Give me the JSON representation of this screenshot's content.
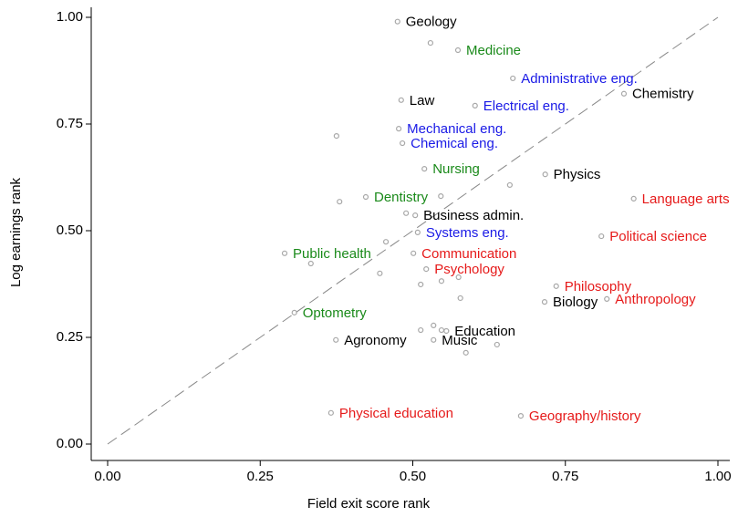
{
  "chart_data": {
    "type": "scatter",
    "xlabel": "Field exit score rank",
    "ylabel": "Log earnings rank",
    "xlim": [
      0,
      1
    ],
    "ylim": [
      0,
      1
    ],
    "xticks": [
      {
        "value": 0,
        "label": "0.00"
      },
      {
        "value": 0.25,
        "label": "0.25"
      },
      {
        "value": 0.5,
        "label": "0.50"
      },
      {
        "value": 0.75,
        "label": "0.75"
      },
      {
        "value": 1,
        "label": "1.00"
      }
    ],
    "yticks": [
      {
        "value": 0,
        "label": "0.00"
      },
      {
        "value": 0.25,
        "label": "0.25"
      },
      {
        "value": 0.5,
        "label": "0.50"
      },
      {
        "value": 0.75,
        "label": "0.75"
      },
      {
        "value": 1,
        "label": "1.00"
      }
    ],
    "marker_color": "#a8a8a8",
    "reference_line_color": "#888888",
    "x": [
      0.475,
      0.574,
      0.664,
      0.481,
      0.602,
      0.846,
      0.477,
      0.483,
      0.519,
      0.717,
      0.423,
      0.862,
      0.504,
      0.508,
      0.809,
      0.29,
      0.501,
      0.522,
      0.735,
      0.818,
      0.716,
      0.306,
      0.555,
      0.374,
      0.534,
      0.366,
      0.677,
      0.529,
      0.375,
      0.38,
      0.546,
      0.659,
      0.489,
      0.456,
      0.333,
      0.446,
      0.513,
      0.547,
      0.575,
      0.578,
      0.534,
      0.513,
      0.547,
      0.638,
      0.587
    ],
    "y": [
      0.99,
      0.923,
      0.857,
      0.806,
      0.793,
      0.821,
      0.739,
      0.705,
      0.645,
      0.632,
      0.579,
      0.575,
      0.536,
      0.496,
      0.487,
      0.447,
      0.447,
      0.41,
      0.37,
      0.34,
      0.333,
      0.308,
      0.265,
      0.244,
      0.244,
      0.073,
      0.066,
      0.94,
      0.722,
      0.568,
      0.581,
      0.607,
      0.541,
      0.474,
      0.423,
      0.4,
      0.374,
      0.382,
      0.391,
      0.342,
      0.278,
      0.267,
      0.267,
      0.233,
      0.214
    ],
    "labels": [
      "Geology",
      "Medicine",
      "Administrative eng.",
      "Law",
      "Electrical eng.",
      "Chemistry",
      "Mechanical eng.",
      "Chemical eng.",
      "Nursing",
      "Physics",
      "Dentistry",
      "Language arts",
      "Business admin.",
      "Systems eng.",
      "Political science",
      "Public health",
      "Communication",
      "Psychology",
      "Philosophy",
      "Anthropology",
      "Biology",
      "Optometry",
      "Education",
      "Agronomy",
      "Music",
      "Physical education",
      "Geography/history",
      null,
      null,
      null,
      null,
      null,
      null,
      null,
      null,
      null,
      null,
      null,
      null,
      null,
      null,
      null,
      null,
      null,
      null
    ],
    "label_colors": [
      "#000000",
      "#1a8a1a",
      "#1a1ae6",
      "#000000",
      "#1a1ae6",
      "#000000",
      "#1a1ae6",
      "#1a1ae6",
      "#1a8a1a",
      "#000000",
      "#1a8a1a",
      "#e61a1a",
      "#000000",
      "#1a1ae6",
      "#e61a1a",
      "#1a8a1a",
      "#e61a1a",
      "#e61a1a",
      "#e61a1a",
      "#e61a1a",
      "#000000",
      "#1a8a1a",
      "#000000",
      "#000000",
      "#000000",
      "#e61a1a",
      "#e61a1a",
      null,
      null,
      null,
      null,
      null,
      null,
      null,
      null,
      null,
      null,
      null,
      null,
      null,
      null,
      null,
      null,
      null,
      null
    ]
  }
}
